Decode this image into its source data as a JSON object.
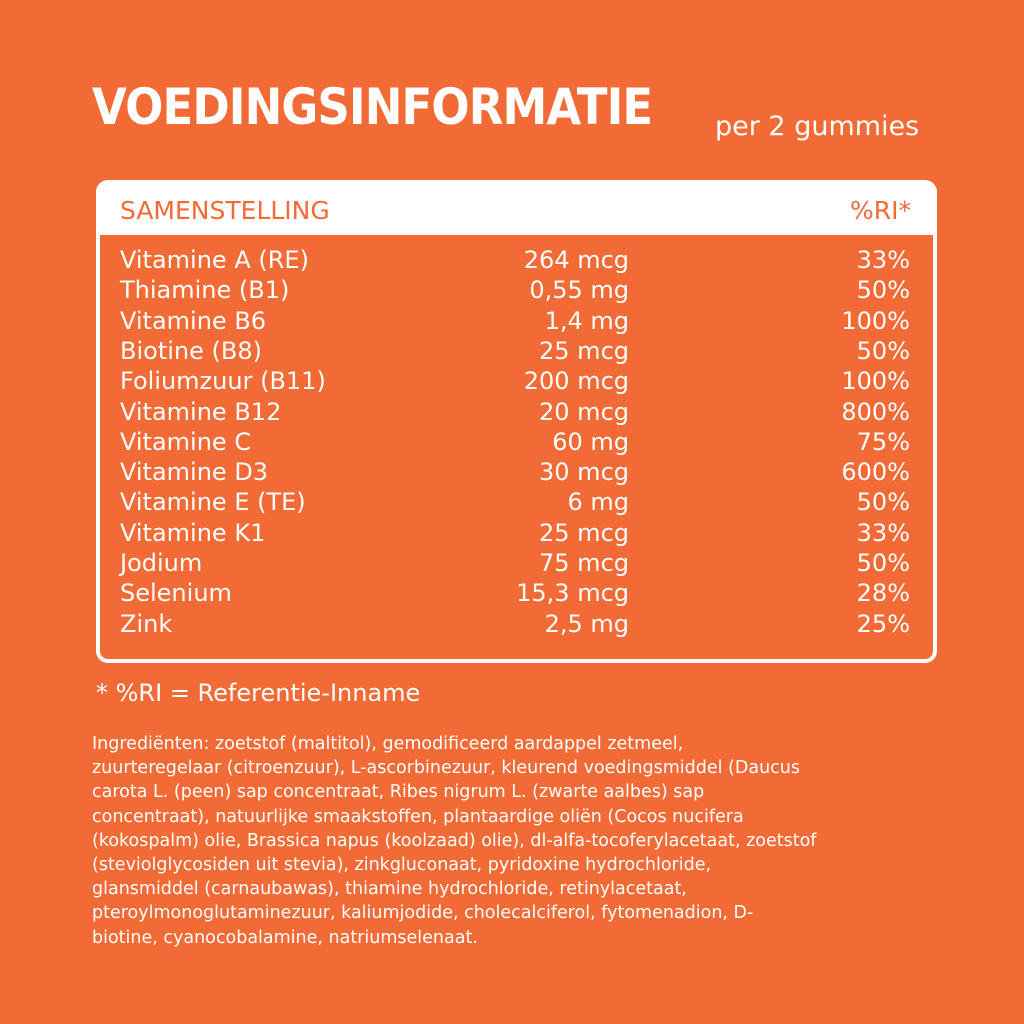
{
  "header": {
    "title": "VOEDINGSINFORMATIE",
    "subtitle": "per 2 gummies"
  },
  "table": {
    "columns": [
      "SAMENSTELLING",
      "%RI*"
    ],
    "rows": [
      [
        "Vitamine A (RE)",
        "264 mcg",
        "33%"
      ],
      [
        "Thiamine (B1)",
        "0,55 mg",
        "50%"
      ],
      [
        "Vitamine B6",
        "1,4 mg",
        "100%"
      ],
      [
        "Biotine (B8)",
        "25 mcg",
        "50%"
      ],
      [
        "Foliumzuur (B11)",
        "200 mcg",
        "100%"
      ],
      [
        "Vitamine B12",
        "20 mcg",
        "800%"
      ],
      [
        "Vitamine C",
        "60 mg",
        "75%"
      ],
      [
        "Vitamine D3",
        "30 mcg",
        "600%"
      ],
      [
        "Vitamine E (TE)",
        "6 mg",
        "50%"
      ],
      [
        "Vitamine K1",
        "25 mcg",
        "33%"
      ],
      [
        "Jodium",
        "75 mcg",
        "50%"
      ],
      [
        "Selenium",
        "15,3 mcg",
        "28%"
      ],
      [
        "Zink",
        "2,5 mg",
        "25%"
      ]
    ]
  },
  "footnote": "* %RI = Referentie-Inname",
  "ingredients": [
    "Ingrediënten: zoetstof (maltitol), gemodificeerd aardappel zetmeel,",
    "zuurteregelaar (citroenzuur), L-ascorbinezuur, kleurend voedingsmiddel (Daucus",
    "carota L. (peen) sap concentraat, Ribes nigrum L. (zwarte aalbes) sap",
    "concentraat), natuurlijke smaakstoffen, plantaardige oliën (Cocos nucifera",
    "(kokospalm) olie, Brassica napus (koolzaad) olie), dl-alfa-tocoferylacetaat, zoetstof",
    "(steviolglycosiden uit stevia), zinkgluconaat, pyridoxine hydrochloride,",
    "glansmiddel (carnaubawas), thiamine hydrochloride, retinylacetaat,",
    "pteroylmonoglutaminezuur, kaliumjodide, cholecalciferol, fytomenadion, D-",
    "biotine, cyanocobalamine, natriumselenaat."
  ]
}
